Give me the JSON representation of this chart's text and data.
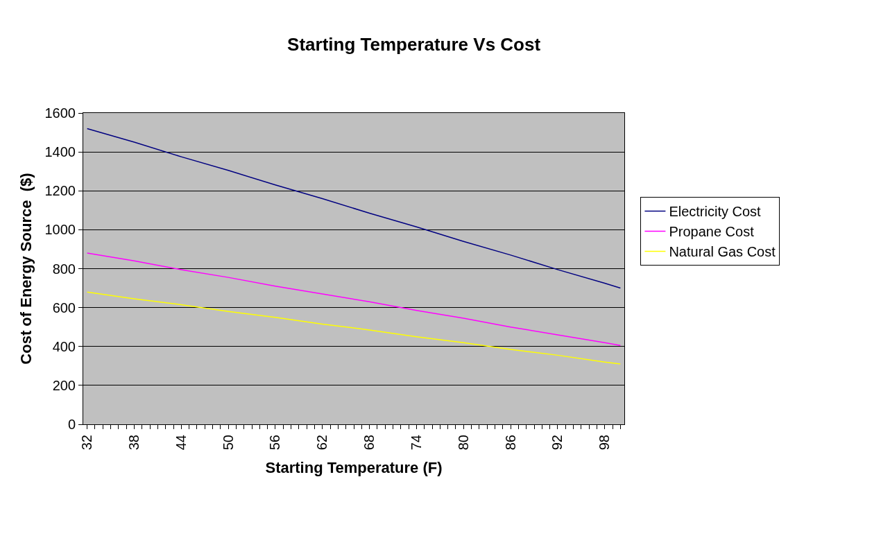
{
  "chart_data": {
    "type": "line",
    "title": "Starting Temperature Vs Cost",
    "xlabel": "Starting Temperature (F)",
    "ylabel": "Cost of Energy Source  ($)",
    "x": [
      32,
      38,
      44,
      50,
      56,
      62,
      68,
      74,
      80,
      86,
      92,
      98,
      100
    ],
    "series": [
      {
        "name": "Electricity Cost",
        "color": "#000080",
        "values": [
          1520,
          1450,
          1375,
          1305,
          1230,
          1160,
          1085,
          1015,
          940,
          870,
          795,
          725,
          700
        ]
      },
      {
        "name": "Propane Cost",
        "color": "#ff00ff",
        "values": [
          880,
          840,
          795,
          755,
          710,
          670,
          630,
          585,
          545,
          500,
          460,
          420,
          405
        ]
      },
      {
        "name": "Natural Gas Cost",
        "color": "#ffff00",
        "values": [
          680,
          645,
          615,
          580,
          550,
          515,
          485,
          450,
          420,
          385,
          355,
          320,
          310
        ]
      }
    ],
    "xlim": [
      31.5,
      100.5
    ],
    "xticks": [
      32,
      38,
      44,
      50,
      56,
      62,
      68,
      74,
      80,
      86,
      92,
      98
    ],
    "ylim": [
      0,
      1600
    ],
    "yticks": [
      0,
      200,
      400,
      600,
      800,
      1000,
      1200,
      1400,
      1600
    ],
    "grid": "y",
    "legend": "right",
    "marker": "none",
    "line_style": "solid"
  }
}
